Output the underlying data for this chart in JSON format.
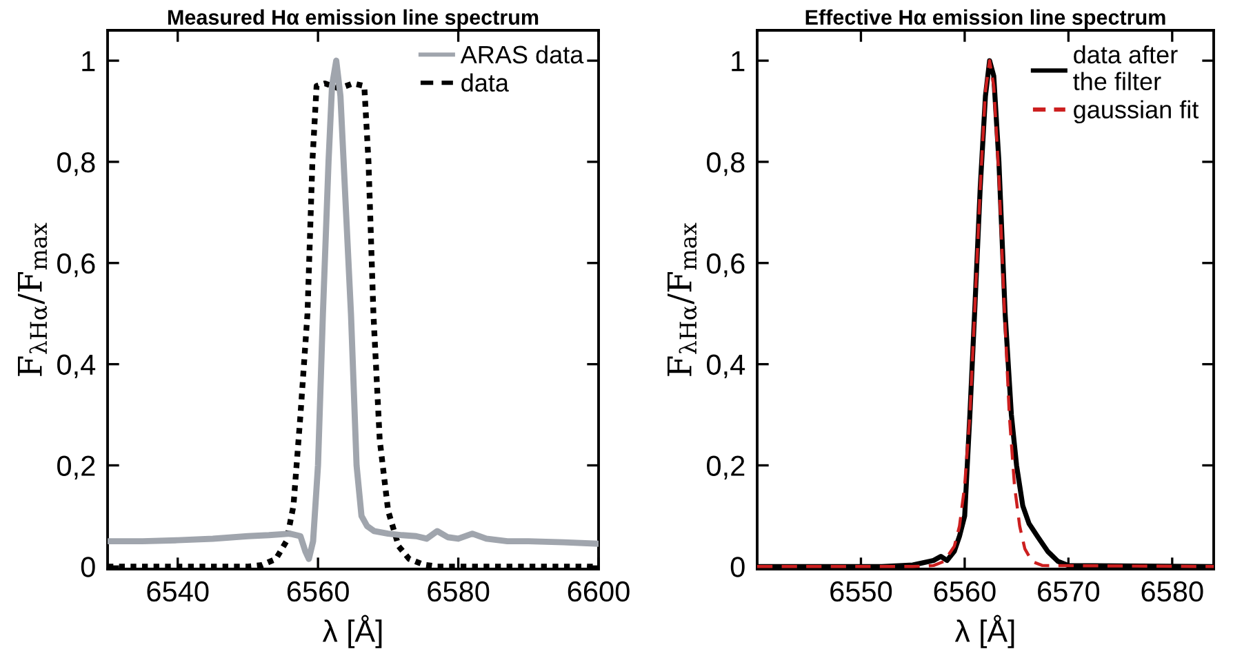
{
  "chart_data": [
    {
      "type": "line",
      "title": "Measured Hα emission line spectrum",
      "xlabel": "λ [Å]",
      "ylabel": "F$_{λHα}$/F$_{max}$",
      "xlim": [
        6530,
        6600
      ],
      "ylim": [
        -0.005,
        1.06
      ],
      "xticks": [
        6540,
        6560,
        6580,
        6600
      ],
      "yticks": [
        0,
        {
          "value": 0.2,
          "label": "0,2"
        },
        {
          "value": 0.4,
          "label": "0,4"
        },
        {
          "value": 0.6,
          "label": "0,6"
        },
        {
          "value": 0.8,
          "label": "0,8"
        },
        1
      ],
      "legend": "top right",
      "series": [
        {
          "name": "ARAS data",
          "color": "#a0a5ad",
          "line_style": "solid",
          "x": [
            6530,
            6535,
            6540,
            6545,
            6550,
            6553,
            6556,
            6557.5,
            6558.2,
            6558.7,
            6559.3,
            6560,
            6560.7,
            6561.5,
            6562,
            6562.6,
            6563.2,
            6564,
            6564.7,
            6565.5,
            6566.2,
            6567,
            6568,
            6570,
            6572,
            6574,
            6575.5,
            6577,
            6578.5,
            6580,
            6582,
            6584,
            6587,
            6590,
            6595,
            6600
          ],
          "values": [
            0.05,
            0.05,
            0.052,
            0.055,
            0.06,
            0.062,
            0.065,
            0.06,
            0.03,
            0.015,
            0.05,
            0.2,
            0.5,
            0.8,
            0.95,
            1.0,
            0.93,
            0.7,
            0.5,
            0.2,
            0.1,
            0.08,
            0.07,
            0.065,
            0.062,
            0.06,
            0.055,
            0.07,
            0.058,
            0.055,
            0.065,
            0.055,
            0.05,
            0.05,
            0.048,
            0.045
          ]
        },
        {
          "name": "data",
          "color": "#000000",
          "line_style": "dotted",
          "x": [
            6530,
            6540,
            6550,
            6552,
            6554,
            6555.5,
            6556.5,
            6557.5,
            6558.5,
            6559.2,
            6559.8,
            6561,
            6563,
            6565,
            6566.6,
            6567.2,
            6567.9,
            6568.8,
            6570,
            6571.5,
            6573,
            6575,
            6577,
            6585,
            6600
          ],
          "values": [
            0,
            0,
            0,
            0.003,
            0.015,
            0.05,
            0.12,
            0.3,
            0.5,
            0.8,
            0.95,
            0.955,
            0.945,
            0.955,
            0.95,
            0.8,
            0.5,
            0.25,
            0.11,
            0.04,
            0.015,
            0.004,
            0,
            0,
            0
          ]
        }
      ]
    },
    {
      "type": "line",
      "title": "Effective Hα emission line spectrum",
      "xlabel": "λ [Å]",
      "ylabel": "F$_{λHα}$/F$_{max}$",
      "xlim": [
        6540,
        6584
      ],
      "ylim": [
        -0.005,
        1.06
      ],
      "xticks": [
        6550,
        6560,
        6570,
        6580
      ],
      "yticks": [
        0,
        {
          "value": 0.2,
          "label": "0,2"
        },
        {
          "value": 0.4,
          "label": "0,4"
        },
        {
          "value": 0.6,
          "label": "0,6"
        },
        {
          "value": 0.8,
          "label": "0,8"
        },
        1
      ],
      "legend": "top right",
      "series": [
        {
          "name": "data after\nthe filter",
          "color": "#000000",
          "line_style": "solid",
          "x": [
            6540,
            6552,
            6555,
            6557,
            6557.7,
            6558.3,
            6559,
            6559.5,
            6560,
            6560.5,
            6561,
            6561.5,
            6562,
            6562.4,
            6562.8,
            6563.3,
            6563.9,
            6564.5,
            6565,
            6565.6,
            6566.2,
            6567,
            6568,
            6569,
            6570,
            6584
          ],
          "values": [
            0,
            0,
            0.003,
            0.012,
            0.02,
            0.012,
            0.03,
            0.06,
            0.1,
            0.3,
            0.52,
            0.75,
            0.93,
            1.0,
            0.97,
            0.8,
            0.5,
            0.3,
            0.2,
            0.12,
            0.085,
            0.06,
            0.03,
            0.01,
            0.002,
            0
          ]
        },
        {
          "name": "gaussian fit",
          "color": "#cc1f1f",
          "line_style": "dashed",
          "x": [
            6540,
            6555,
            6557,
            6558,
            6559,
            6559.5,
            6560,
            6560.5,
            6561,
            6561.5,
            6562,
            6562.4,
            6562.8,
            6563.3,
            6563.8,
            6564.3,
            6564.8,
            6565.3,
            6565.8,
            6566.5,
            6567.5,
            6584
          ],
          "values": [
            0,
            0,
            0.002,
            0.01,
            0.04,
            0.08,
            0.16,
            0.3,
            0.52,
            0.75,
            0.94,
            1.0,
            0.95,
            0.77,
            0.52,
            0.3,
            0.16,
            0.08,
            0.035,
            0.01,
            0.002,
            0
          ]
        }
      ]
    }
  ]
}
